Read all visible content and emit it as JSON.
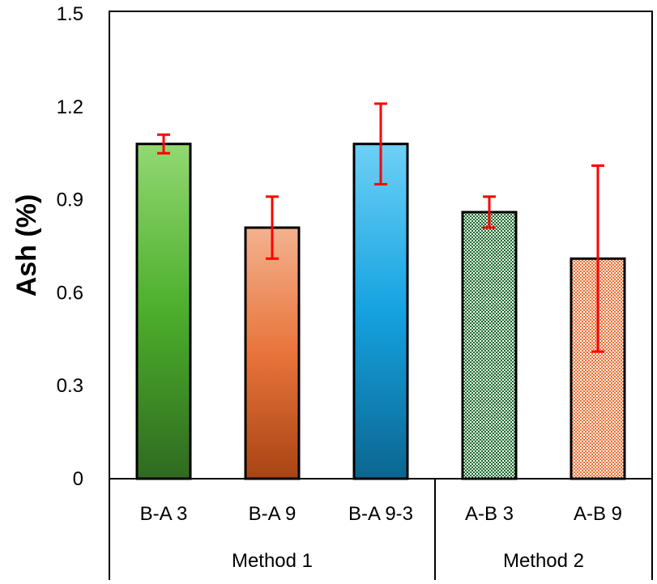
{
  "chart_data": {
    "type": "bar",
    "title": "",
    "xlabel": "",
    "ylabel": "Ash (%)",
    "ylim": [
      0,
      1.5
    ],
    "yticks": [
      "0",
      "0.3",
      "0.6",
      "0.9",
      "1.2",
      "1.5"
    ],
    "ytick_values": [
      0,
      0.3,
      0.6,
      0.9,
      1.2,
      1.5
    ],
    "grid": false,
    "categories": [
      "B-A 3",
      "B-A 9",
      "B-A 9-3",
      "A-B 3",
      "A-B 9"
    ],
    "values": [
      1.08,
      0.81,
      1.08,
      0.86,
      0.71
    ],
    "errors": [
      0.03,
      0.1,
      0.13,
      0.05,
      0.3
    ],
    "fills": [
      "green-gradient",
      "orange-gradient",
      "blue-gradient",
      "green-checker",
      "orange-checker"
    ],
    "groups": [
      {
        "label": "Method 1",
        "count": 3
      },
      {
        "label": "Method 2",
        "count": 2
      }
    ],
    "colors": {
      "green": "#4caf2a",
      "orange": "#e8743b",
      "blue": "#17a3e0",
      "green_pattern": "#1d6b2e",
      "orange_pattern": "#e8733a",
      "error": "#ff0000"
    }
  }
}
